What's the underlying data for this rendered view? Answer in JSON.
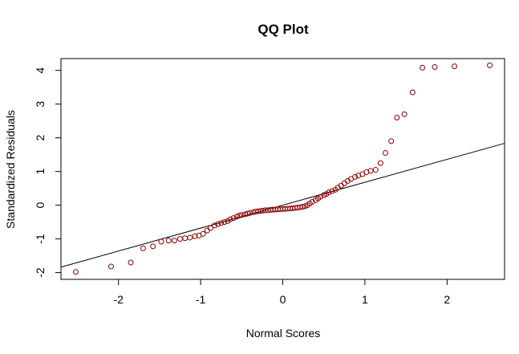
{
  "chart_data": {
    "type": "scatter",
    "title": "QQ Plot",
    "xlabel": "Normal Scores",
    "ylabel": "Standardized Residuals",
    "xlim": [
      -2.7,
      2.7
    ],
    "ylim": [
      -2.2,
      4.35
    ],
    "x_ticks": [
      -2,
      -1,
      0,
      1,
      2
    ],
    "x_tick_labels": [
      "-2",
      "-1",
      "0",
      "1",
      "2"
    ],
    "y_ticks": [
      -2,
      -1,
      0,
      1,
      2,
      3,
      4
    ],
    "y_tick_labels": [
      "-2",
      "-1",
      "0",
      "1",
      "2",
      "3",
      "4"
    ],
    "grid": false,
    "point_color": "#8b0000",
    "line_color": "#000000",
    "reference_line": {
      "intercept": 0.0,
      "slope": 0.68
    },
    "points": {
      "x": [
        -2.52,
        -2.09,
        -1.85,
        -1.7,
        -1.58,
        -1.48,
        -1.39,
        -1.32,
        -1.25,
        -1.19,
        -1.13,
        -1.07,
        -1.02,
        -0.97,
        -0.92,
        -0.88,
        -0.83,
        -0.79,
        -0.75,
        -0.71,
        -0.67,
        -0.64,
        -0.6,
        -0.56,
        -0.53,
        -0.5,
        -0.46,
        -0.43,
        -0.4,
        -0.36,
        -0.33,
        -0.3,
        -0.27,
        -0.24,
        -0.21,
        -0.18,
        -0.15,
        -0.12,
        -0.09,
        -0.06,
        -0.03,
        0.0,
        0.03,
        0.06,
        0.09,
        0.12,
        0.15,
        0.18,
        0.21,
        0.24,
        0.27,
        0.3,
        0.33,
        0.36,
        0.4,
        0.43,
        0.46,
        0.5,
        0.53,
        0.56,
        0.6,
        0.64,
        0.67,
        0.71,
        0.75,
        0.79,
        0.83,
        0.88,
        0.92,
        0.97,
        1.02,
        1.07,
        1.13,
        1.19,
        1.25,
        1.32,
        1.39,
        1.48,
        1.58,
        1.7,
        1.85,
        2.09,
        2.52
      ],
      "y": [
        -1.98,
        -1.82,
        -1.7,
        -1.28,
        -1.22,
        -1.08,
        -1.05,
        -1.05,
        -1.0,
        -0.98,
        -0.96,
        -0.92,
        -0.9,
        -0.85,
        -0.75,
        -0.68,
        -0.6,
        -0.56,
        -0.53,
        -0.5,
        -0.47,
        -0.42,
        -0.38,
        -0.34,
        -0.31,
        -0.29,
        -0.27,
        -0.25,
        -0.23,
        -0.21,
        -0.19,
        -0.18,
        -0.17,
        -0.16,
        -0.15,
        -0.15,
        -0.14,
        -0.13,
        -0.13,
        -0.12,
        -0.12,
        -0.11,
        -0.11,
        -0.1,
        -0.1,
        -0.09,
        -0.08,
        -0.07,
        -0.06,
        -0.05,
        -0.03,
        0.0,
        0.05,
        0.1,
        0.15,
        0.2,
        0.25,
        0.3,
        0.33,
        0.38,
        0.42,
        0.46,
        0.52,
        0.58,
        0.65,
        0.72,
        0.78,
        0.84,
        0.88,
        0.92,
        0.98,
        1.02,
        1.05,
        1.25,
        1.55,
        1.9,
        2.6,
        2.7,
        3.35,
        4.08,
        4.1,
        4.12,
        4.15
      ]
    }
  }
}
